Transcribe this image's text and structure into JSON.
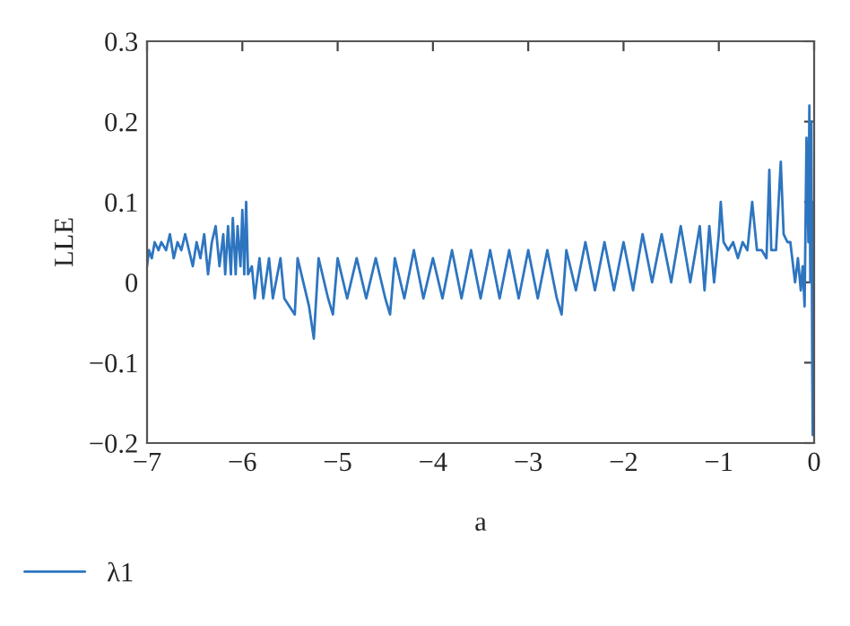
{
  "chart_data": {
    "type": "line",
    "xlabel": "a",
    "ylabel": "LLE",
    "xlim": [
      -7,
      0
    ],
    "ylim": [
      -0.2,
      0.3
    ],
    "xticks": [
      -7,
      -6,
      -5,
      -4,
      -3,
      -2,
      -1,
      0
    ],
    "yticks": [
      -0.2,
      -0.1,
      0,
      0.1,
      0.2,
      0.3
    ],
    "grid": false,
    "legend": "bottom left",
    "line_style": "solid",
    "marker": "none",
    "series": [
      {
        "name": "λ1",
        "color": "#2e75c0",
        "x": [
          -7,
          -6.98,
          -6.95,
          -6.92,
          -6.88,
          -6.85,
          -6.8,
          -6.76,
          -6.72,
          -6.68,
          -6.64,
          -6.6,
          -6.56,
          -6.52,
          -6.48,
          -6.44,
          -6.4,
          -6.36,
          -6.32,
          -6.28,
          -6.24,
          -6.2,
          -6.18,
          -6.15,
          -6.12,
          -6.1,
          -6.07,
          -6.05,
          -6.02,
          -6.0,
          -5.98,
          -5.96,
          -5.94,
          -5.9,
          -5.87,
          -5.82,
          -5.78,
          -5.72,
          -5.68,
          -5.6,
          -5.56,
          -5.45,
          -5.42,
          -5.3,
          -5.25,
          -5.2,
          -5.1,
          -5.05,
          -5.0,
          -4.9,
          -4.8,
          -4.7,
          -4.6,
          -4.5,
          -4.45,
          -4.4,
          -4.3,
          -4.2,
          -4.1,
          -4.0,
          -3.9,
          -3.8,
          -3.7,
          -3.6,
          -3.5,
          -3.4,
          -3.3,
          -3.2,
          -3.1,
          -3.0,
          -2.9,
          -2.8,
          -2.7,
          -2.65,
          -2.6,
          -2.5,
          -2.4,
          -2.3,
          -2.2,
          -2.1,
          -2.0,
          -1.9,
          -1.8,
          -1.7,
          -1.6,
          -1.5,
          -1.4,
          -1.3,
          -1.2,
          -1.15,
          -1.1,
          -1.05,
          -1.0,
          -0.98,
          -0.95,
          -0.9,
          -0.85,
          -0.8,
          -0.75,
          -0.7,
          -0.65,
          -0.6,
          -0.55,
          -0.5,
          -0.47,
          -0.45,
          -0.4,
          -0.35,
          -0.32,
          -0.28,
          -0.25,
          -0.2,
          -0.17,
          -0.14,
          -0.12,
          -0.1,
          -0.08,
          -0.06,
          -0.05,
          -0.04,
          -0.03,
          -0.02,
          -0.015,
          -0.01,
          -0.005,
          0
        ],
        "values": [
          0.02,
          0.04,
          0.03,
          0.05,
          0.04,
          0.05,
          0.04,
          0.06,
          0.03,
          0.05,
          0.04,
          0.06,
          0.04,
          0.02,
          0.05,
          0.03,
          0.06,
          0.01,
          0.05,
          0.07,
          0.02,
          0.06,
          0.01,
          0.07,
          0.01,
          0.08,
          0.01,
          0.07,
          0.02,
          0.09,
          0.01,
          0.1,
          0.01,
          0.02,
          -0.02,
          0.03,
          -0.02,
          0.03,
          -0.02,
          0.03,
          -0.02,
          -0.04,
          0.03,
          -0.03,
          -0.07,
          0.03,
          -0.02,
          -0.04,
          0.03,
          -0.02,
          0.03,
          -0.02,
          0.03,
          -0.02,
          -0.04,
          0.03,
          -0.02,
          0.04,
          -0.02,
          0.03,
          -0.02,
          0.04,
          -0.02,
          0.04,
          -0.02,
          0.04,
          -0.02,
          0.04,
          -0.02,
          0.04,
          -0.02,
          0.04,
          -0.02,
          -0.04,
          0.04,
          -0.01,
          0.05,
          -0.01,
          0.05,
          -0.01,
          0.05,
          -0.01,
          0.06,
          0.0,
          0.06,
          0.0,
          0.07,
          0.0,
          0.07,
          -0.01,
          0.07,
          0.0,
          0.06,
          0.1,
          0.05,
          0.04,
          0.05,
          0.03,
          0.05,
          0.04,
          0.1,
          0.04,
          0.04,
          0.03,
          0.14,
          0.04,
          0.04,
          0.15,
          0.06,
          0.05,
          0.05,
          0.0,
          0.03,
          -0.01,
          0.02,
          -0.03,
          0.18,
          0.05,
          0.22,
          0.0,
          0.2,
          -0.1,
          -0.19,
          0.05,
          0.1,
          -0.07
        ]
      }
    ]
  }
}
